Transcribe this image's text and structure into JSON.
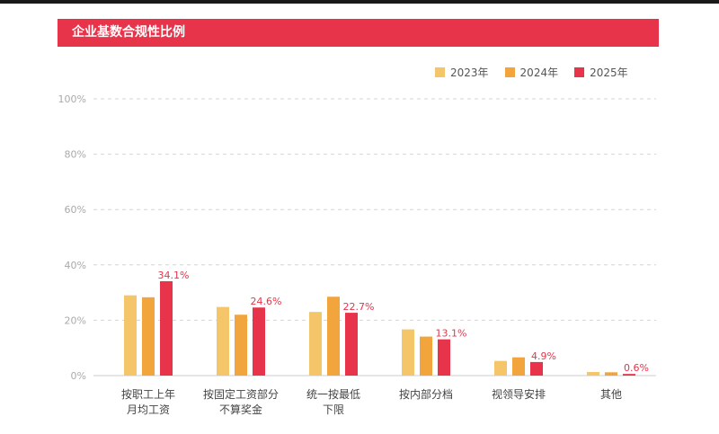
{
  "header": {
    "title": "企业基数合规性比例"
  },
  "colors": {
    "series_2023": "#f5c56a",
    "series_2024": "#f2a53d",
    "series_2025": "#e8344a",
    "accent": "#e8344a"
  },
  "chart_data": {
    "type": "bar",
    "title": "企业基数合规性比例",
    "categories": [
      [
        "按职工上年",
        "月均工资"
      ],
      [
        "按固定工资部分",
        "不算奖金"
      ],
      [
        "统一按最低",
        "下限"
      ],
      [
        "按内部分档"
      ],
      [
        "视领导安排"
      ],
      [
        "其他"
      ]
    ],
    "series": [
      {
        "name": "2023年",
        "values": [
          29,
          24.8,
          23,
          16.7,
          5.3,
          1.3
        ]
      },
      {
        "name": "2024年",
        "values": [
          28.3,
          22,
          28.5,
          14.1,
          6.6,
          1.2
        ]
      },
      {
        "name": "2025年",
        "values": [
          34.1,
          24.6,
          22.7,
          13.1,
          4.9,
          0.6
        ]
      }
    ],
    "data_labels": [
      "34.1%",
      "24.6%",
      "22.7%",
      "13.1%",
      "4.9%",
      "0.6%"
    ],
    "yticks": [
      "0%",
      "20%",
      "40%",
      "60%",
      "80%",
      "100%"
    ],
    "ylim": [
      0,
      100
    ],
    "grid": true,
    "legend_position": "top-right"
  }
}
